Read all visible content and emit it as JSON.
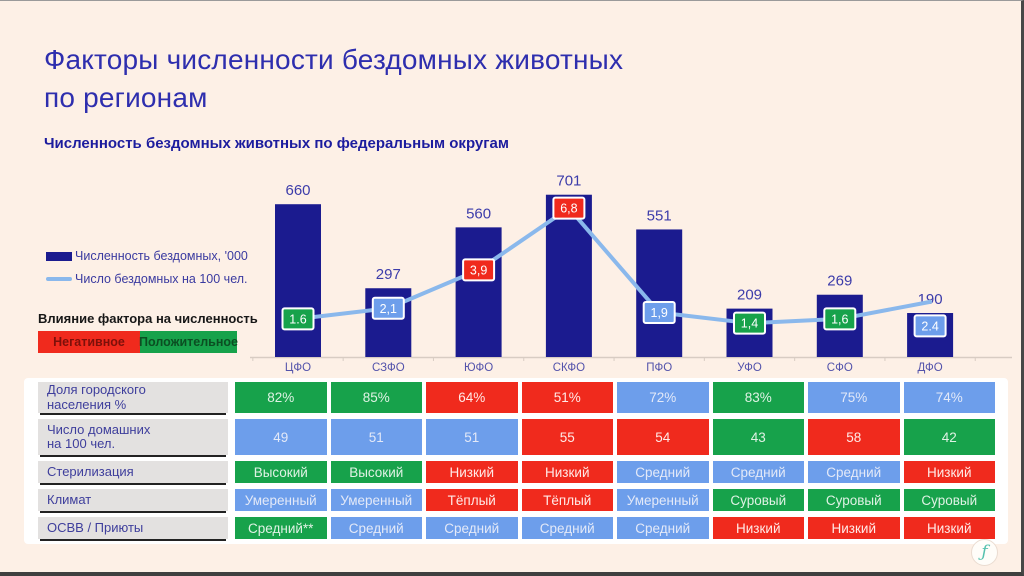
{
  "page": {
    "title_line1": "Факторы численности бездомных животных",
    "title_line2": "по регионам",
    "subtitle": "Численность бездомных животных по федеральным округам"
  },
  "colors": {
    "background": "#fdf0e6",
    "bar": "#1b1b8f",
    "line": "#8ab8ec",
    "positive": "#17a24b",
    "negative": "#f02a1d",
    "neutral": "#6d9eeb",
    "title_text": "#2e2eae",
    "header_cell": "#e3e1e0"
  },
  "series_legend": {
    "bars_label": "Численность бездомных, '000",
    "line_label": "Число бездомных на 100 чел."
  },
  "factor_legend": {
    "title": "Влияние фактора на численность",
    "negative_label": "Негативное",
    "positive_label": "Положительное"
  },
  "chart_data": {
    "type": "bar",
    "title": "Численность бездомных животных по федеральным округам",
    "categories": [
      "ЦФО",
      "СЗФО",
      "ЮФО",
      "СКФО",
      "ПФО",
      "УФО",
      "СФО",
      "ДФО"
    ],
    "series": [
      {
        "name": "Численность бездомных, '000",
        "type": "bar",
        "values": [
          660,
          297,
          560,
          701,
          551,
          209,
          269,
          190
        ]
      },
      {
        "name": "Число бездомных на 100 чел.",
        "type": "line",
        "values": [
          1.6,
          2.1,
          3.9,
          6.8,
          1.9,
          1.4,
          1.6,
          2.4
        ],
        "labels": [
          "1.6",
          "2,1",
          "3,9",
          "6,8",
          "1,9",
          "1,4",
          "1,6",
          "2.4"
        ],
        "marker_status": [
          "positive",
          "neutral",
          "negative",
          "negative",
          "neutral",
          "positive",
          "positive",
          "neutral"
        ],
        "label_offsets_y": [
          0,
          0,
          0,
          0,
          0,
          0,
          0,
          24
        ]
      }
    ],
    "xlabel": "",
    "ylabel": "",
    "grid": false,
    "legend_position": "left"
  },
  "table": {
    "rows": [
      {
        "label": "Доля городского населения %",
        "label_lines": [
          "Доля городского",
          "населения %"
        ],
        "cells": [
          {
            "value": "82%",
            "status": "positive"
          },
          {
            "value": "85%",
            "status": "positive"
          },
          {
            "value": "64%",
            "status": "negative"
          },
          {
            "value": "51%",
            "status": "negative"
          },
          {
            "value": "72%",
            "status": "neutral"
          },
          {
            "value": "83%",
            "status": "positive"
          },
          {
            "value": "75%",
            "status": "neutral"
          },
          {
            "value": "74%",
            "status": "neutral"
          }
        ]
      },
      {
        "label": "Число домашних на 100 чел.",
        "label_lines": [
          "Число домашних",
          "на 100 чел."
        ],
        "cells": [
          {
            "value": "49",
            "status": "neutral"
          },
          {
            "value": "51",
            "status": "neutral"
          },
          {
            "value": "51",
            "status": "neutral"
          },
          {
            "value": "55",
            "status": "negative"
          },
          {
            "value": "54",
            "status": "negative"
          },
          {
            "value": "43",
            "status": "positive"
          },
          {
            "value": "58",
            "status": "negative"
          },
          {
            "value": "42",
            "status": "positive"
          }
        ]
      },
      {
        "label": "Стерилизация",
        "label_lines": [
          "Стерилизация"
        ],
        "cells": [
          {
            "value": "Высокий",
            "status": "positive"
          },
          {
            "value": "Высокий",
            "status": "positive"
          },
          {
            "value": "Низкий",
            "status": "negative"
          },
          {
            "value": "Низкий",
            "status": "negative"
          },
          {
            "value": "Средний",
            "status": "neutral"
          },
          {
            "value": "Средний",
            "status": "neutral"
          },
          {
            "value": "Средний",
            "status": "neutral"
          },
          {
            "value": "Низкий",
            "status": "negative"
          }
        ]
      },
      {
        "label": "Климат",
        "label_lines": [
          "Климат"
        ],
        "cells": [
          {
            "value": "Умеренный",
            "status": "neutral"
          },
          {
            "value": "Умеренный",
            "status": "neutral"
          },
          {
            "value": "Тёплый",
            "status": "negative"
          },
          {
            "value": "Тёплый",
            "status": "negative"
          },
          {
            "value": "Умеренный",
            "status": "neutral"
          },
          {
            "value": "Суровый",
            "status": "positive"
          },
          {
            "value": "Суровый",
            "status": "positive"
          },
          {
            "value": "Суровый",
            "status": "positive"
          }
        ]
      },
      {
        "label": "ОСВВ / Приюты",
        "label_lines": [
          "ОСВВ / Приюты"
        ],
        "cells": [
          {
            "value": "Средний**",
            "status": "positive"
          },
          {
            "value": "Средний",
            "status": "neutral"
          },
          {
            "value": "Средний",
            "status": "neutral"
          },
          {
            "value": "Средний",
            "status": "neutral"
          },
          {
            "value": "Средний",
            "status": "neutral"
          },
          {
            "value": "Низкий",
            "status": "negative"
          },
          {
            "value": "Низкий",
            "status": "negative"
          },
          {
            "value": "Низкий",
            "status": "negative"
          }
        ]
      }
    ]
  },
  "footer": {
    "logo_glyph": "ƒ"
  }
}
